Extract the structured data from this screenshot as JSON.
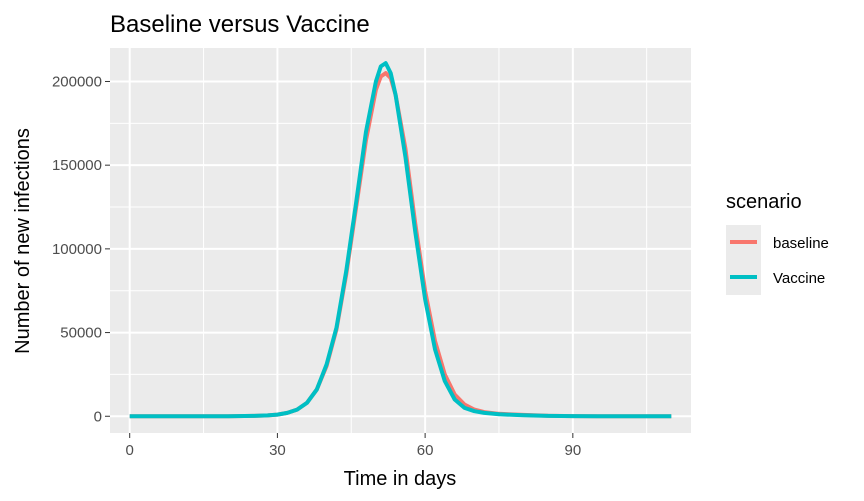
{
  "chart_data": {
    "type": "line",
    "title": "Baseline versus Vaccine",
    "xlabel": "Time in days",
    "ylabel": "Number of new infections",
    "xlim": [
      -4,
      114
    ],
    "ylim": [
      -10000,
      220000
    ],
    "x_ticks": [
      0,
      30,
      60,
      90
    ],
    "x_tick_labels": [
      "0",
      "30",
      "60",
      "90"
    ],
    "y_ticks": [
      0,
      50000,
      100000,
      150000,
      200000
    ],
    "y_tick_labels": [
      "0",
      "50000",
      "100000",
      "150000",
      "200000"
    ],
    "grid": true,
    "legend": {
      "title": "scenario",
      "position": "right"
    },
    "x": [
      0,
      5,
      10,
      15,
      20,
      25,
      28,
      30,
      32,
      34,
      36,
      38,
      40,
      42,
      44,
      46,
      48,
      50,
      51,
      52,
      53,
      54,
      56,
      58,
      60,
      62,
      64,
      66,
      68,
      70,
      72,
      75,
      80,
      85,
      90,
      95,
      100,
      105,
      110
    ],
    "series": [
      {
        "name": "baseline",
        "color": "#F8766D",
        "values": [
          0,
          0,
          0,
          0,
          0,
          200,
          500,
          1000,
          2000,
          4000,
          8000,
          16000,
          30000,
          52000,
          85000,
          125000,
          165000,
          195000,
          203000,
          205000,
          202000,
          192000,
          160000,
          115000,
          75000,
          45000,
          25000,
          13000,
          7000,
          4000,
          2500,
          1500,
          800,
          300,
          100,
          50,
          0,
          0,
          0
        ]
      },
      {
        "name": "Vaccine",
        "color": "#00BFC4",
        "values": [
          0,
          0,
          0,
          0,
          0,
          200,
          500,
          1000,
          2000,
          4000,
          8000,
          16000,
          31000,
          53000,
          87000,
          128000,
          170000,
          200000,
          209000,
          211000,
          205000,
          192000,
          155000,
          110000,
          70000,
          40000,
          21000,
          10000,
          5000,
          3000,
          2000,
          1200,
          600,
          200,
          100,
          50,
          0,
          0,
          0
        ]
      }
    ]
  }
}
